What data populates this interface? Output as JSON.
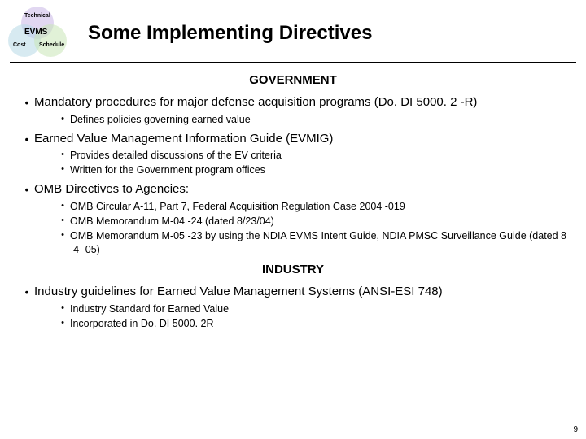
{
  "venn": {
    "top": "Technical",
    "left": "Cost",
    "right": "Schedule",
    "center": "EVMS"
  },
  "title": "Some Implementing Directives",
  "section1": {
    "heading": "GOVERNMENT",
    "items": [
      {
        "text": "Mandatory procedures for major defense acquisition programs (Do. DI 5000. 2 -R)",
        "sub": [
          "Defines policies governing earned value"
        ]
      },
      {
        "text": "Earned Value Management Information Guide (EVMIG)",
        "sub": [
          "Provides detailed discussions of the EV criteria",
          "Written for the Government program offices"
        ]
      },
      {
        "text": "OMB Directives to Agencies:",
        "sub": [
          "OMB Circular A-11, Part 7, Federal Acquisition Regulation Case 2004 -019",
          "OMB Memorandum M-04 -24 (dated 8/23/04)",
          "OMB Memorandum M-05 -23 by using the NDIA EVMS Intent Guide, NDIA PMSC Surveillance Guide (dated 8 -4 -05)"
        ]
      }
    ]
  },
  "section2": {
    "heading": "INDUSTRY",
    "items": [
      {
        "text": "Industry guidelines for Earned Value Management Systems (ANSI-ESI 748)",
        "sub": [
          "Industry Standard for Earned Value",
          "Incorporated in Do. DI 5000. 2R"
        ]
      }
    ]
  },
  "pageNumber": "9"
}
